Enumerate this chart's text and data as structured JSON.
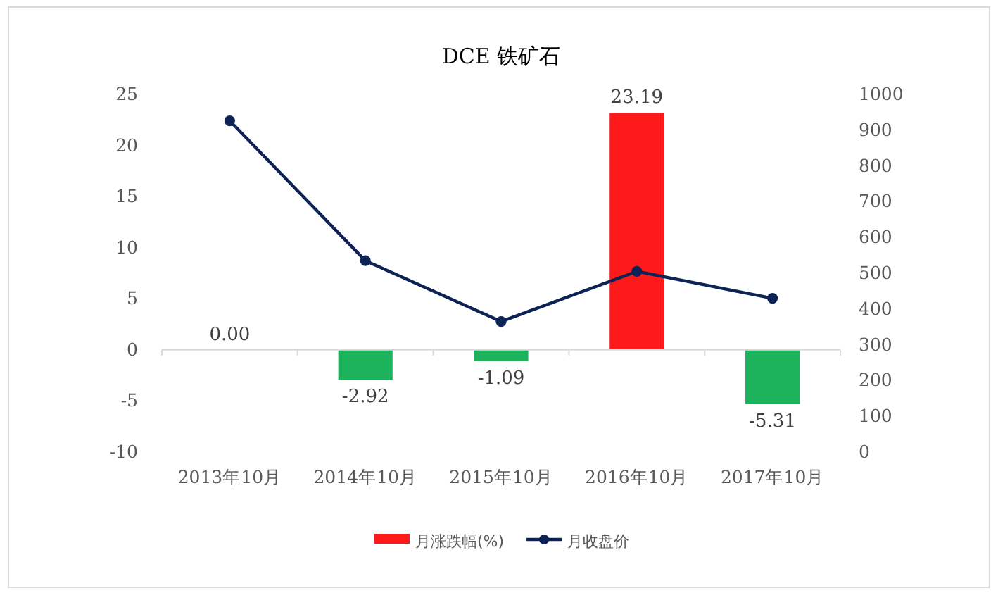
{
  "chart_data": {
    "type": "bar",
    "title": "DCE 铁矿石",
    "categories": [
      "2013年10月",
      "2014年10月",
      "2015年10月",
      "2016年10月",
      "2017年10月"
    ],
    "series": [
      {
        "name": "月涨跌幅(%)",
        "color": "#fe1a1a",
        "colors": [
          "#fe1a1a",
          "#1db35c",
          "#1db35c",
          "#fe1a1a",
          "#1db35c"
        ],
        "values": [
          0,
          -2.92,
          -1.09,
          23.19,
          -5.31
        ],
        "value_labels": [
          "0.00",
          "-2.92",
          "-1.09",
          "23.19",
          "-5.31"
        ]
      },
      {
        "name": "月收盘价",
        "type": "line",
        "axis": "y2",
        "color": "#0d2356",
        "marker": "circle",
        "values": [
          926,
          535,
          365,
          505,
          430
        ]
      }
    ],
    "ylim": [
      -10,
      25
    ],
    "yticks": [
      -10,
      -5,
      0,
      5,
      10,
      15,
      20,
      25
    ],
    "y2lim": [
      0,
      1000
    ],
    "y2ticks": [
      0,
      100,
      200,
      300,
      400,
      500,
      600,
      700,
      800,
      900,
      1000
    ],
    "legend": "bottom"
  }
}
